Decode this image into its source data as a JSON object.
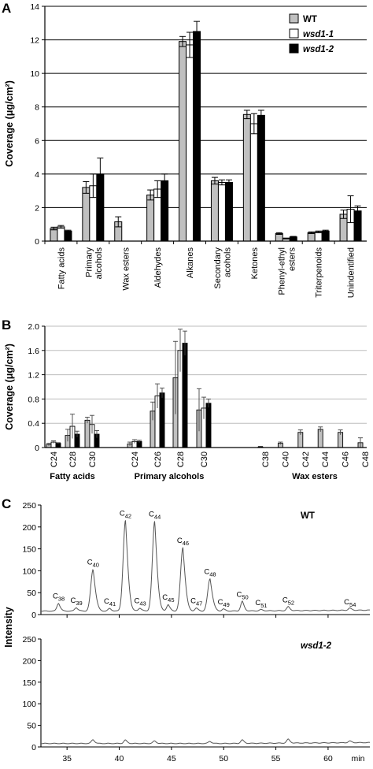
{
  "panel_letters": [
    "A",
    "B",
    "C"
  ],
  "colors": {
    "wt": "#c0c0c0",
    "wsd1_1": "#ffffff",
    "wsd1_2": "#000000",
    "trace": "#555555"
  },
  "chart_data": [
    {
      "panel": "A",
      "type": "bar",
      "ylabel": "Coverage (μg/cm²)",
      "ylim": [
        0,
        14
      ],
      "yticks": [
        0,
        2,
        4,
        6,
        8,
        10,
        12,
        14
      ],
      "grid": true,
      "legend_position": "top-right",
      "categories": [
        "Fatty acids",
        "Primary alcohols",
        "Wax esters",
        "Aldehydes",
        "Alkanes",
        "Secondary acohols",
        "Ketones",
        "Phenyl-ethyl esters",
        "Triterpenoids",
        "Unindentified"
      ],
      "series": [
        {
          "name": "WT",
          "values": [
            0.75,
            3.2,
            1.15,
            2.75,
            11.9,
            3.6,
            7.55,
            0.45,
            0.5,
            1.6
          ],
          "errors": [
            0.08,
            0.35,
            0.3,
            0.3,
            0.3,
            0.2,
            0.25,
            0.05,
            0.05,
            0.25
          ]
        },
        {
          "name": "wsd1-1",
          "values": [
            0.85,
            3.3,
            0.0,
            3.1,
            11.7,
            3.5,
            7.0,
            0.15,
            0.55,
            1.9
          ],
          "errors": [
            0.08,
            0.7,
            0.0,
            0.5,
            0.75,
            0.15,
            0.6,
            0.03,
            0.05,
            0.8
          ]
        },
        {
          "name": "wsd1-2",
          "values": [
            0.6,
            4.0,
            0.0,
            3.6,
            12.5,
            3.5,
            7.5,
            0.25,
            0.6,
            1.8
          ],
          "errors": [
            0.05,
            0.95,
            0.0,
            0.4,
            0.6,
            0.15,
            0.3,
            0.03,
            0.05,
            0.3
          ]
        }
      ]
    },
    {
      "panel": "B",
      "type": "bar",
      "ylabel": "Coverage (μg/cm²)",
      "ylim": [
        0,
        2.0
      ],
      "yticks": [
        0,
        0.4,
        0.8,
        1.2,
        1.6,
        2.0
      ],
      "ytick_labels": [
        "0",
        "0.4",
        "0.8",
        "1.2",
        "1.6",
        "2.0"
      ],
      "grid": true,
      "categories": [
        "C24",
        "C28",
        "C30",
        "C24",
        "C26",
        "C28",
        "C30",
        "C38",
        "C40",
        "C42",
        "C44",
        "C46",
        "C48"
      ],
      "category_groups": [
        {
          "label": "Fatty acids",
          "members": [
            "C24",
            "C28",
            "C30"
          ]
        },
        {
          "label": "Primary alcohols",
          "members": [
            "C24",
            "C26",
            "C28",
            "C30"
          ]
        },
        {
          "label": "Wax esters",
          "members": [
            "C38",
            "C40",
            "C42",
            "C44",
            "C46",
            "C48"
          ]
        }
      ],
      "series": [
        {
          "name": "WT",
          "values": [
            0.05,
            0.2,
            0.45,
            0.06,
            0.6,
            1.15,
            0.62,
            0.01,
            0.07,
            0.25,
            0.3,
            0.25,
            0.08
          ],
          "errors": [
            0.02,
            0.1,
            0.05,
            0.03,
            0.15,
            0.6,
            0.35,
            0.01,
            0.02,
            0.04,
            0.04,
            0.04,
            0.08
          ]
        },
        {
          "name": "wsd1-1",
          "values": [
            0.09,
            0.35,
            0.38,
            0.1,
            0.85,
            1.6,
            0.65,
            0.0,
            0.0,
            0.0,
            0.0,
            0.0,
            0.0
          ],
          "errors": [
            0.02,
            0.2,
            0.15,
            0.03,
            0.2,
            0.35,
            0.18,
            0.0,
            0.0,
            0.0,
            0.0,
            0.0,
            0.0
          ]
        },
        {
          "name": "wsd1-2",
          "values": [
            0.07,
            0.22,
            0.22,
            0.1,
            0.9,
            1.72,
            0.73,
            0.0,
            0.0,
            0.0,
            0.0,
            0.0,
            0.0
          ],
          "errors": [
            0.01,
            0.05,
            0.06,
            0.02,
            0.08,
            0.2,
            0.07,
            0.0,
            0.0,
            0.0,
            0.0,
            0.0,
            0.0
          ]
        }
      ]
    },
    {
      "panel": "C",
      "type": "line",
      "ylabel": "Intensity",
      "xlabel": "min",
      "xlim": [
        32.5,
        64.0
      ],
      "xticks": [
        35,
        40,
        45,
        50,
        55,
        60
      ],
      "ylim": [
        0,
        250
      ],
      "yticks": [
        0,
        50,
        100,
        150,
        200,
        250
      ],
      "grid": false,
      "traces": [
        {
          "name": "WT",
          "baseline": 8,
          "peaks": [
            {
              "label": "C38",
              "x": 34.2,
              "y": 26
            },
            {
              "label": "C39",
              "x": 35.9,
              "y": 16
            },
            {
              "label": "C40",
              "x": 37.5,
              "y": 103
            },
            {
              "label": "C41",
              "x": 39.1,
              "y": 14
            },
            {
              "label": "C42",
              "x": 40.6,
              "y": 215
            },
            {
              "label": "C43",
              "x": 42.0,
              "y": 15
            },
            {
              "label": "C44",
              "x": 43.4,
              "y": 213
            },
            {
              "label": "C45",
              "x": 44.7,
              "y": 23
            },
            {
              "label": "C46",
              "x": 46.1,
              "y": 153
            },
            {
              "label": "C47",
              "x": 47.4,
              "y": 15
            },
            {
              "label": "C48",
              "x": 48.7,
              "y": 82
            },
            {
              "label": "C49",
              "x": 50.0,
              "y": 13
            },
            {
              "label": "C50",
              "x": 51.8,
              "y": 30
            },
            {
              "label": "C51",
              "x": 53.6,
              "y": 11
            },
            {
              "label": "C52",
              "x": 56.2,
              "y": 17
            },
            {
              "label": "C54",
              "x": 62.1,
              "y": 13
            }
          ]
        },
        {
          "name": "wsd1-2",
          "baseline": 8,
          "peaks": [
            {
              "x": 37.5,
              "y": 17
            },
            {
              "x": 40.6,
              "y": 16
            },
            {
              "x": 43.4,
              "y": 14
            },
            {
              "x": 48.7,
              "y": 13
            },
            {
              "x": 51.8,
              "y": 16
            },
            {
              "x": 56.2,
              "y": 17
            },
            {
              "x": 62.1,
              "y": 12
            }
          ]
        }
      ]
    }
  ]
}
